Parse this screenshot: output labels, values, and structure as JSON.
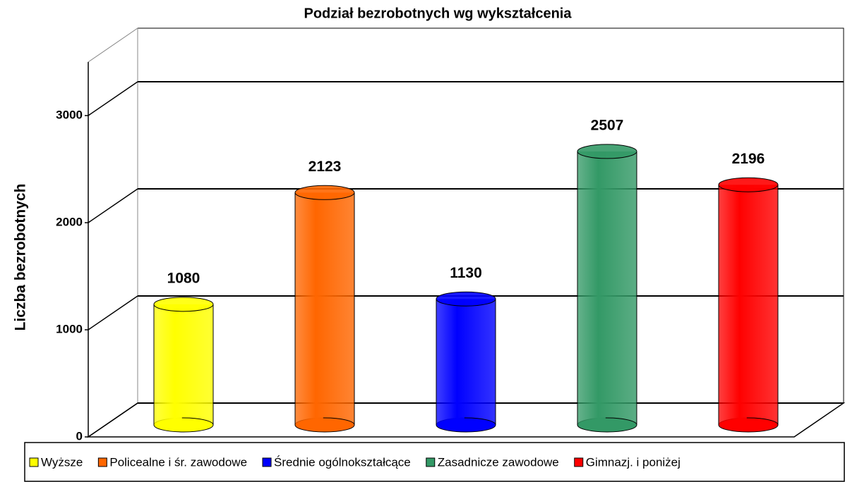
{
  "chart_data": {
    "type": "bar",
    "title": "Podział bezrobotnych wg wykształcenia",
    "ylabel": "Liczba bezrobotnych",
    "categories": [
      "Wyższe",
      "Policealne i śr. zawodowe",
      "Średnie ogólnokształcące",
      "Zasadnicze zawodowe",
      "Gimnazj. i poniżej"
    ],
    "values": [
      1080,
      2123,
      1130,
      2507,
      2196
    ],
    "colors": [
      "#ffff00",
      "#ff6600",
      "#0000ff",
      "#339966",
      "#ff0000"
    ],
    "ylim": [
      0,
      3500
    ],
    "yticks": [
      0,
      1000,
      2000,
      3000
    ],
    "grid": true
  }
}
